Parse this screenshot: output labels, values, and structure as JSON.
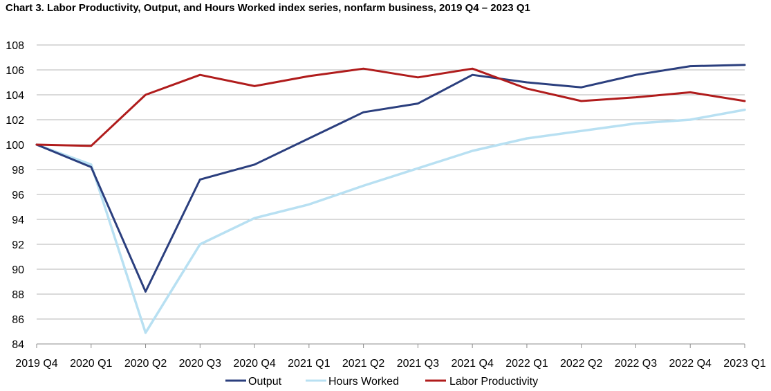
{
  "chart_data": {
    "type": "line",
    "title": "Chart 3.  Labor Productivity, Output,  and Hours Worked index series, nonfarm business, 2019 Q4 – 2023 Q1",
    "xlabel": "",
    "ylabel": "",
    "categories": [
      "2019 Q4",
      "2020 Q1",
      "2020 Q2",
      "2020 Q3",
      "2020 Q4",
      "2021 Q1",
      "2021 Q2",
      "2021 Q3",
      "2021 Q4",
      "2022 Q1",
      "2022 Q2",
      "2022 Q3",
      "2022 Q4",
      "2023 Q1"
    ],
    "ylim": [
      84,
      108
    ],
    "yticks": [
      84,
      86,
      88,
      90,
      92,
      94,
      96,
      98,
      100,
      102,
      104,
      106,
      108
    ],
    "grid": true,
    "legend_position": "bottom",
    "series": [
      {
        "name": "Output",
        "color": "#2b3f7e",
        "values": [
          100.0,
          98.2,
          88.2,
          97.2,
          98.4,
          100.5,
          102.6,
          103.3,
          105.6,
          105.0,
          104.6,
          105.6,
          106.3,
          106.4
        ]
      },
      {
        "name": "Hours Worked",
        "color": "#b8e0f2",
        "values": [
          100.0,
          98.4,
          84.9,
          92.0,
          94.1,
          95.2,
          96.7,
          98.1,
          99.5,
          100.5,
          101.1,
          101.7,
          102.0,
          102.8
        ]
      },
      {
        "name": "Labor Productivity",
        "color": "#b01c1c",
        "values": [
          100.0,
          99.9,
          104.0,
          105.6,
          104.7,
          105.5,
          106.1,
          105.4,
          106.1,
          104.5,
          103.5,
          103.8,
          104.2,
          103.5
        ]
      }
    ]
  }
}
